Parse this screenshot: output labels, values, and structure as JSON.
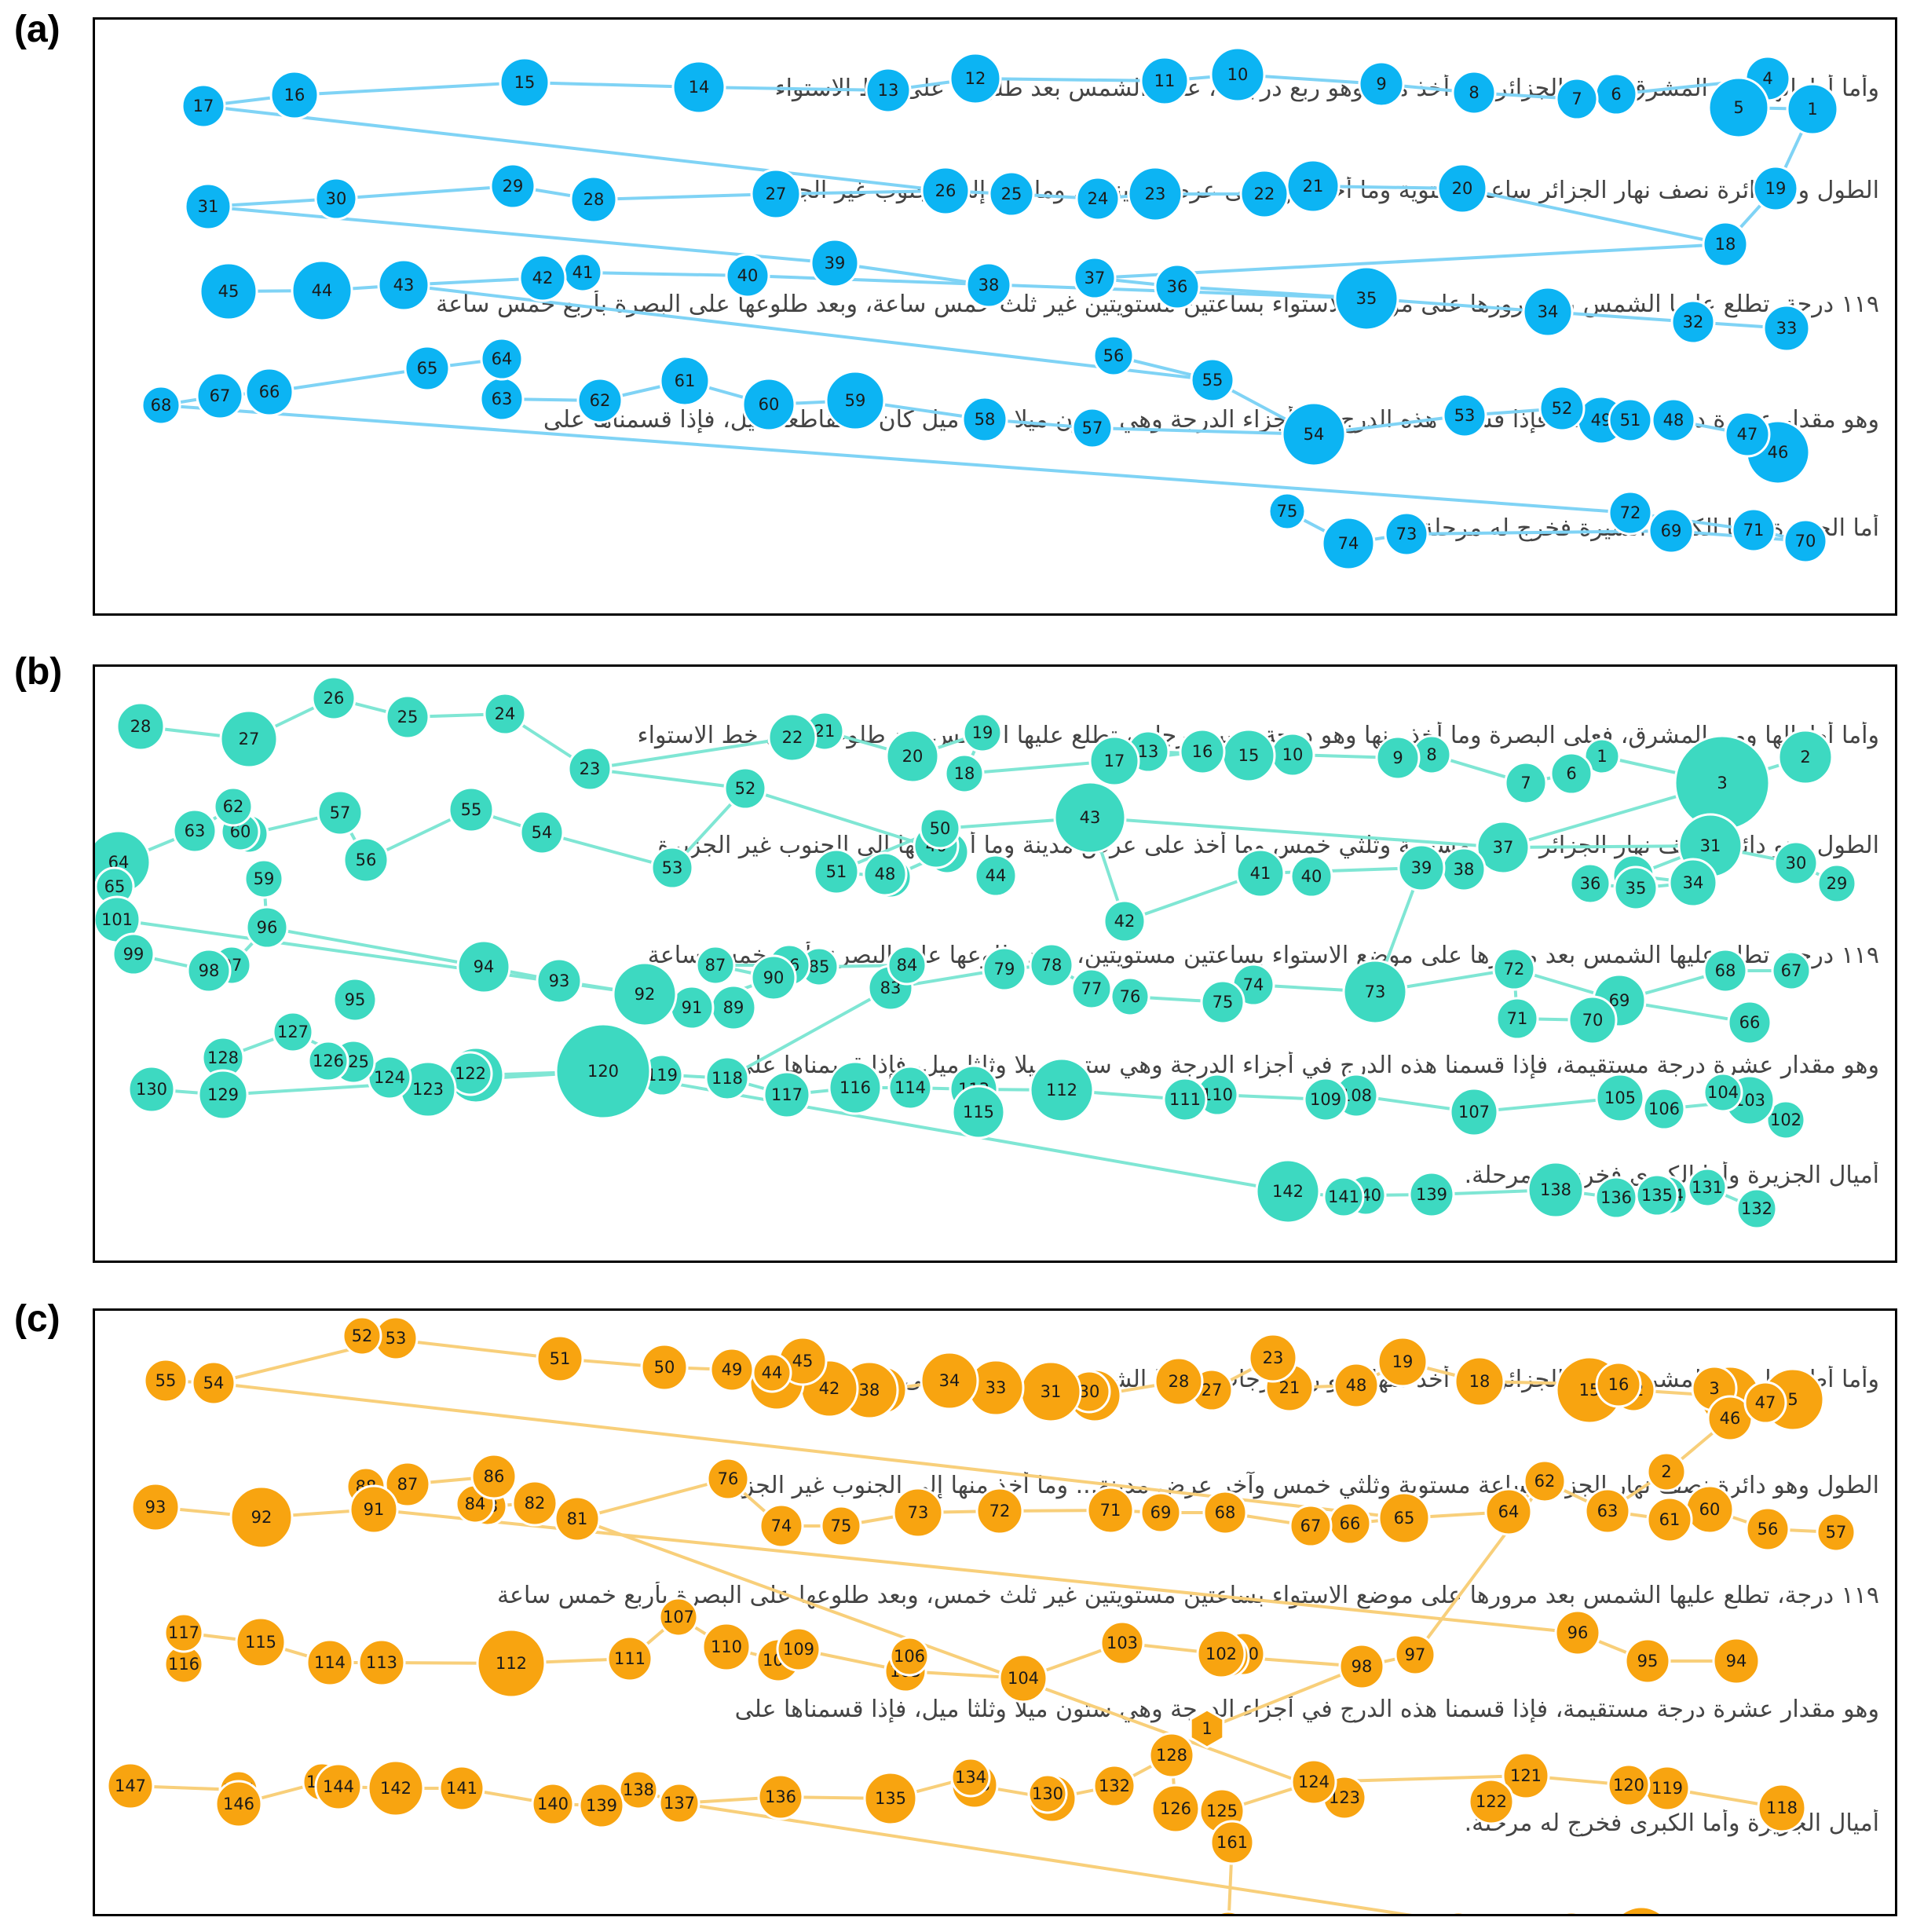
{
  "panels": [
    {
      "label": "(a)",
      "node_color": "#0cb4f3",
      "edge_color": "#7fd3f5",
      "text_lines": [
        "وأما أطوالها ومن المشرق، فهي الجزائر وما أخذ منها وهو ربع درجات، عليها الشمس بعد طلوعها على خط الاستواء",
        "الطول وهو دائرة نصف نهار الجزائر ساعة مستوية وما أخذ منها على عرض مدينة ... وما أخذ إلى الجنوب غير الجزيرة",
        "١١٩ درجة، تطلع عليها الشمس بعد مرورها على موضع الاستواء بساعتين مستويتين غير ثلث خمس ساعة، وبعد طلوعها على البصرة بأربع خمس ساعة",
        "وهو مقدار عشرة درجة مستقيمة، فإذا قسمنا هذه الدرج في أجزاء الدرجة وهي ستون ميلا وثلثا ميل كان ما تقاطعة ميل، فإذا قسمناها على",
        "أما الجزيرة وأما الكبرى السيرة فخرج له مرحلة."
      ]
    },
    {
      "label": "(b)",
      "node_color": "#3dd9c1",
      "edge_color": "#7fe6d4",
      "text_lines": [
        "وأما أطوالها ومن المشرق، فعلى البصرة وما أخذ منها وهو درجة وسبع درجات، تطلع عليها الشمس بعد طلوعها على خط الاستواء",
        "الطول وهو دائرة نصف نهار الجزائر ساعة مستوية وثلثي خمس وما أخذ على عرض مدينة وما أخذ منها إلى الجنوب غير الجزيرة",
        "١١٩ درجة، تطلع عليها الشمس بعد مرورها على موضع الاستواء بساعتين مستويتين، وبعد طلوعها على البصرة بأربع خمس ساعة",
        "وهو مقدار عشرة درجة مستقيمة، فإذا قسمنا هذه الدرج في أجزاء الدرجة وهي ستون ميلا وثلثا ميل، فإذا قسمناها على",
        "أميال الجزيرة وأما الكبرى فخرج له مرحلة."
      ]
    },
    {
      "label": "(c)",
      "node_color": "#f8a410",
      "edge_color": "#f8cf7a",
      "text_lines": [
        "وأما أطوالها ومن المشرق، فهي الجزائر وما أخذ منها وهو ربع درجات، عليها الشمس بعد طلوعها على خط الاستواء",
        "الطول وهو دائرة نصف نهار الجزائر ساعة مستوية وثلثي خمس وآخر عرض مدينة... وما أخذ منها إلى الجنوب غير الجزيرة",
        "١١٩ درجة، تطلع عليها الشمس بعد مرورها على موضع الاستواء بساعتين مستويتين غير ثلث خمس، وبعد طلوعها على البصرة بأربع خمس ساعة",
        "وهو مقدار عشرة درجة مستقيمة، فإذا قسمنا هذه الدرج في أجزاء الدرجة وهي ستون ميلا وثلثا ميل، فإذا قسمناها على",
        "أميال الجزيرة وأما الكبرى فخرج له مرحلة."
      ]
    }
  ]
}
